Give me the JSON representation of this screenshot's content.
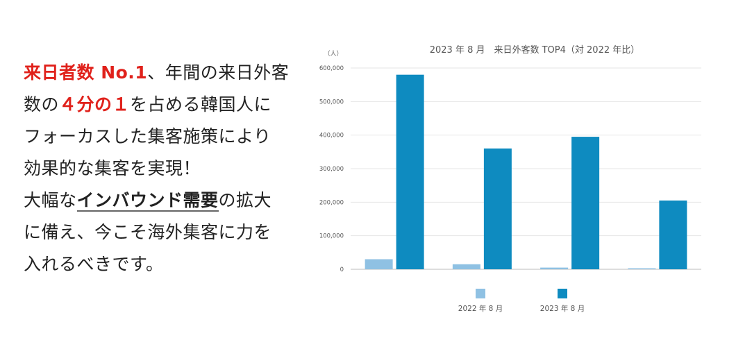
{
  "copy": {
    "l1_a": "来日者数 No.1",
    "l1_b": "、年間の来日外客",
    "l2_a": "数の",
    "l2_b": "４分の１",
    "l2_c": "を占める韓国人に",
    "l3": "フォーカスした集客施策により",
    "l4": "効果的な集客を実現！",
    "l5_a": "大幅な",
    "l5_b": "インバウンド需要",
    "l5_c": "の拡大",
    "l6": "に備え、今こそ海外集客に力を",
    "l7": "入れるべきです。"
  },
  "colors": {
    "accent_red": "#e0211b",
    "series_2022": "#8fc1e3",
    "series_2023": "#0e8bc0"
  },
  "chart_data": {
    "type": "bar",
    "title": "2023 年 8 月　来日外客数 TOP4（対 2022 年比）",
    "ylabel": "（人）",
    "categories": [
      "",
      "",
      "",
      ""
    ],
    "series": [
      {
        "name": "2022 年 8 月",
        "values": [
          30000,
          15000,
          5000,
          3000
        ]
      },
      {
        "name": "2023 年 8 月",
        "values": [
          580000,
          360000,
          395000,
          205000
        ]
      }
    ],
    "ylim": [
      0,
      600000
    ],
    "yticks": [
      0,
      100000,
      200000,
      300000,
      400000,
      500000,
      600000
    ],
    "ytick_labels": [
      "0",
      "100,000",
      "200,000",
      "300,000",
      "400,000",
      "500,000",
      "600,000"
    ],
    "grid": true,
    "legend": "bottom"
  }
}
